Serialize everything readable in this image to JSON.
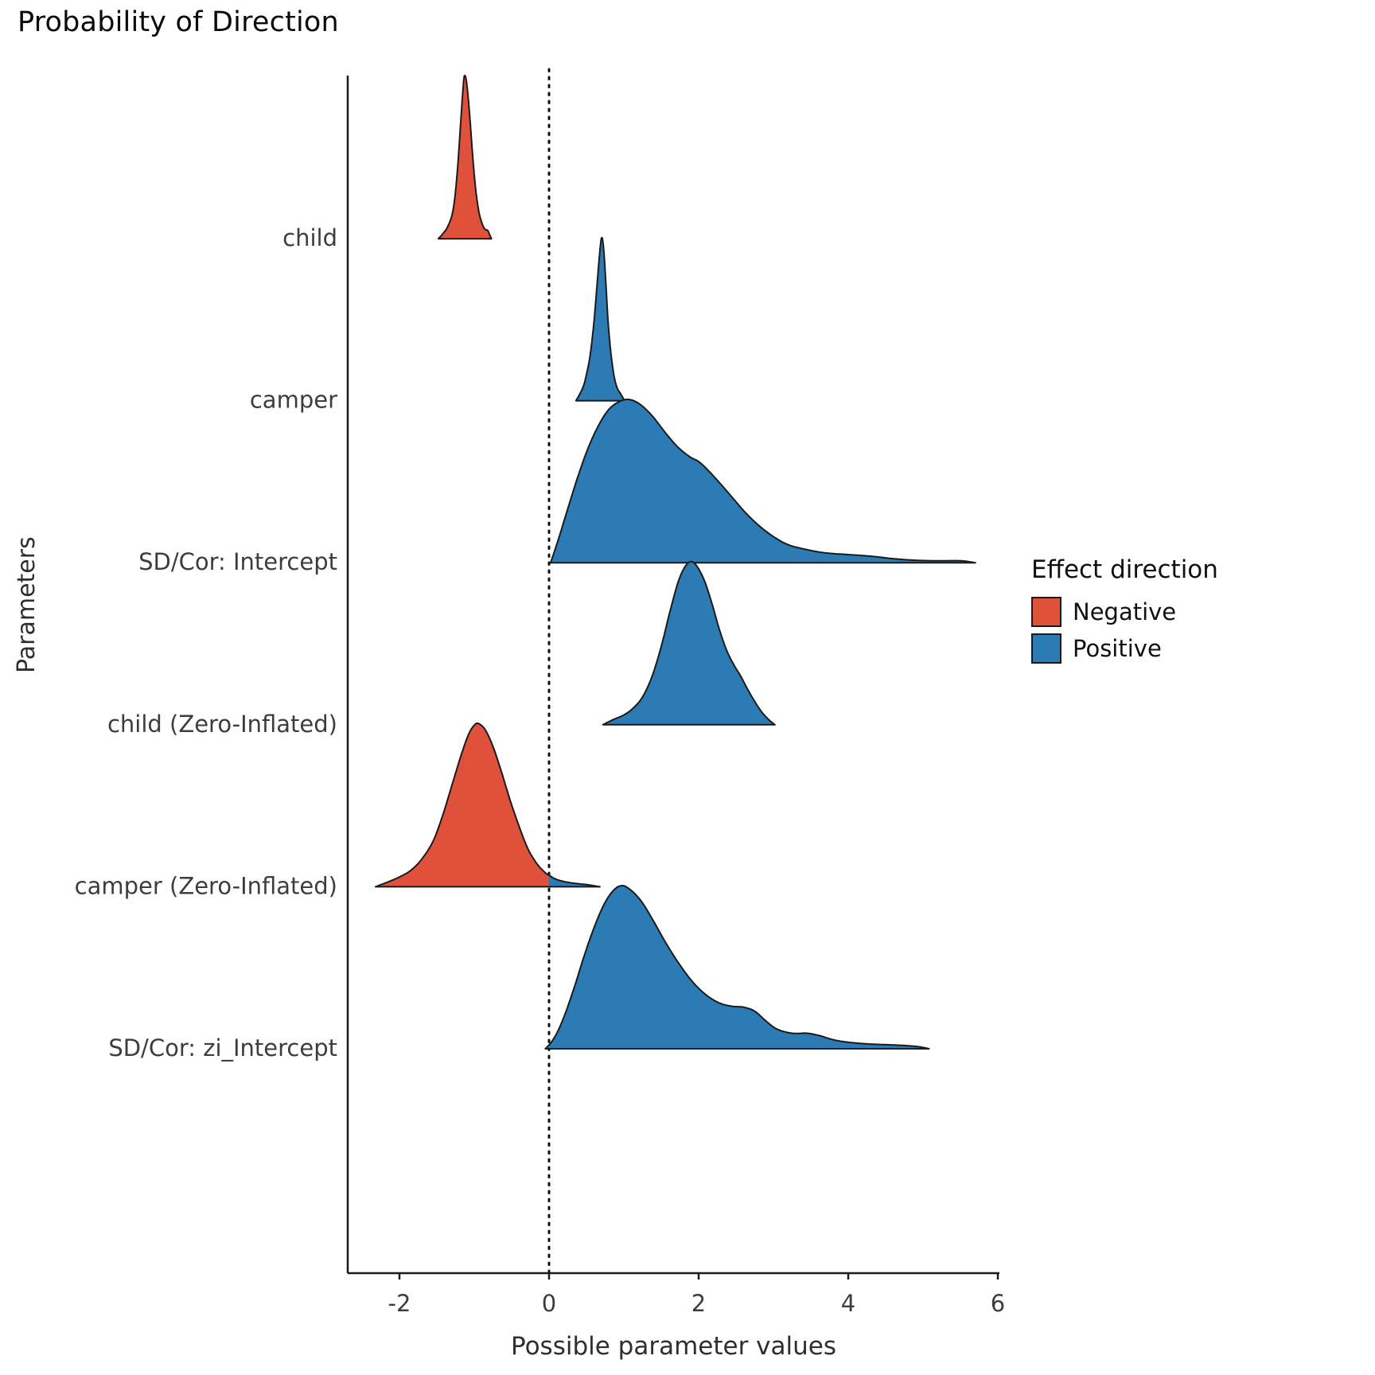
{
  "title": "Probability of Direction",
  "xlabel": "Possible parameter values",
  "ylabel": "Parameters",
  "legend": {
    "title": "Effect direction",
    "entries": [
      {
        "label": "Negative",
        "color": "#E0513C"
      },
      {
        "label": "Positive",
        "color": "#2C7BB5"
      }
    ]
  },
  "colors": {
    "negative": "#E0513C",
    "positive": "#2C7BB5",
    "axis": "#1a1a1a",
    "ridge_outline": "#1a1a1a",
    "tick_text": "#3d3d3d",
    "zero_line": "#111111"
  },
  "chart_data": {
    "type": "area",
    "variant": "ridgeline-density",
    "title": "Probability of Direction",
    "xlabel": "Possible parameter values",
    "ylabel": "Parameters",
    "x_ticks": [
      -2,
      0,
      2,
      4,
      6
    ],
    "xlim": [
      -2.7,
      6.0
    ],
    "zero_reference_line": 0,
    "legend_title": "Effect direction",
    "legend_position": "right",
    "grid": false,
    "parameters": [
      {
        "name": "child",
        "direction": "Negative",
        "segments": [
          {
            "direction": "Negative",
            "points": [
              [
                -1.48,
                0.0
              ],
              [
                -1.42,
                0.03
              ],
              [
                -1.36,
                0.07
              ],
              [
                -1.3,
                0.14
              ],
              [
                -1.26,
                0.25
              ],
              [
                -1.22,
                0.45
              ],
              [
                -1.18,
                0.72
              ],
              [
                -1.15,
                0.92
              ],
              [
                -1.13,
                1.0
              ],
              [
                -1.1,
                0.95
              ],
              [
                -1.06,
                0.75
              ],
              [
                -1.02,
                0.5
              ],
              [
                -0.98,
                0.3
              ],
              [
                -0.94,
                0.17
              ],
              [
                -0.9,
                0.1
              ],
              [
                -0.86,
                0.06
              ],
              [
                -0.82,
                0.05
              ],
              [
                -0.79,
                0.02
              ],
              [
                -0.77,
                0.0
              ]
            ]
          }
        ]
      },
      {
        "name": "camper",
        "direction": "Positive",
        "segments": [
          {
            "direction": "Positive",
            "points": [
              [
                0.36,
                0.0
              ],
              [
                0.41,
                0.04
              ],
              [
                0.46,
                0.09
              ],
              [
                0.5,
                0.16
              ],
              [
                0.55,
                0.28
              ],
              [
                0.6,
                0.48
              ],
              [
                0.64,
                0.7
              ],
              [
                0.68,
                0.92
              ],
              [
                0.705,
                1.0
              ],
              [
                0.73,
                0.93
              ],
              [
                0.76,
                0.72
              ],
              [
                0.79,
                0.48
              ],
              [
                0.83,
                0.28
              ],
              [
                0.87,
                0.15
              ],
              [
                0.91,
                0.08
              ],
              [
                0.96,
                0.04
              ],
              [
                1.01,
                0.0
              ]
            ]
          }
        ]
      },
      {
        "name": "SD/Cor:  Intercept",
        "direction": "Positive",
        "segments": [
          {
            "direction": "Positive",
            "points": [
              [
                0.02,
                0.0
              ],
              [
                0.08,
                0.08
              ],
              [
                0.15,
                0.18
              ],
              [
                0.25,
                0.33
              ],
              [
                0.38,
                0.52
              ],
              [
                0.52,
                0.7
              ],
              [
                0.66,
                0.84
              ],
              [
                0.8,
                0.94
              ],
              [
                0.95,
                0.99
              ],
              [
                1.08,
                1.0
              ],
              [
                1.22,
                0.97
              ],
              [
                1.38,
                0.9
              ],
              [
                1.55,
                0.8
              ],
              [
                1.72,
                0.71
              ],
              [
                1.88,
                0.65
              ],
              [
                2.0,
                0.62
              ],
              [
                2.12,
                0.57
              ],
              [
                2.28,
                0.49
              ],
              [
                2.45,
                0.4
              ],
              [
                2.62,
                0.31
              ],
              [
                2.8,
                0.23
              ],
              [
                3.0,
                0.16
              ],
              [
                3.2,
                0.11
              ],
              [
                3.45,
                0.08
              ],
              [
                3.7,
                0.06
              ],
              [
                4.0,
                0.05
              ],
              [
                4.3,
                0.04
              ],
              [
                4.6,
                0.025
              ],
              [
                4.9,
                0.015
              ],
              [
                5.2,
                0.012
              ],
              [
                5.5,
                0.012
              ],
              [
                5.7,
                0.0
              ]
            ]
          }
        ]
      },
      {
        "name": "child (Zero-Inflated)",
        "direction": "Positive",
        "segments": [
          {
            "direction": "Positive",
            "points": [
              [
                0.72,
                0.0
              ],
              [
                0.85,
                0.03
              ],
              [
                1.0,
                0.06
              ],
              [
                1.12,
                0.1
              ],
              [
                1.25,
                0.17
              ],
              [
                1.38,
                0.3
              ],
              [
                1.5,
                0.48
              ],
              [
                1.62,
                0.7
              ],
              [
                1.73,
                0.88
              ],
              [
                1.82,
                0.97
              ],
              [
                1.9,
                1.0
              ],
              [
                1.98,
                0.97
              ],
              [
                2.08,
                0.88
              ],
              [
                2.18,
                0.74
              ],
              [
                2.28,
                0.58
              ],
              [
                2.38,
                0.45
              ],
              [
                2.48,
                0.36
              ],
              [
                2.56,
                0.3
              ],
              [
                2.64,
                0.23
              ],
              [
                2.74,
                0.15
              ],
              [
                2.84,
                0.08
              ],
              [
                2.94,
                0.03
              ],
              [
                3.02,
                0.0
              ]
            ]
          }
        ]
      },
      {
        "name": "camper (Zero-Inflated)",
        "direction": "Negative",
        "segments": [
          {
            "direction": "Negative",
            "points": [
              [
                -2.32,
                0.0
              ],
              [
                -2.15,
                0.03
              ],
              [
                -2.0,
                0.06
              ],
              [
                -1.85,
                0.1
              ],
              [
                -1.7,
                0.17
              ],
              [
                -1.55,
                0.28
              ],
              [
                -1.42,
                0.44
              ],
              [
                -1.3,
                0.62
              ],
              [
                -1.18,
                0.8
              ],
              [
                -1.08,
                0.93
              ],
              [
                -1.0,
                0.99
              ],
              [
                -0.94,
                1.0
              ],
              [
                -0.85,
                0.96
              ],
              [
                -0.75,
                0.86
              ],
              [
                -0.64,
                0.71
              ],
              [
                -0.52,
                0.53
              ],
              [
                -0.4,
                0.37
              ],
              [
                -0.28,
                0.23
              ],
              [
                -0.16,
                0.14
              ],
              [
                -0.06,
                0.09
              ],
              [
                0.0,
                0.07
              ]
            ]
          },
          {
            "direction": "Positive",
            "points": [
              [
                0.0,
                0.07
              ],
              [
                0.1,
                0.045
              ],
              [
                0.22,
                0.03
              ],
              [
                0.36,
                0.02
              ],
              [
                0.52,
                0.012
              ],
              [
                0.68,
                0.0
              ]
            ]
          }
        ]
      },
      {
        "name": "SD/Cor:  zi_Intercept",
        "direction": "Positive",
        "segments": [
          {
            "direction": "Positive",
            "points": [
              [
                -0.05,
                0.0
              ],
              [
                0.03,
                0.04
              ],
              [
                0.12,
                0.11
              ],
              [
                0.22,
                0.22
              ],
              [
                0.34,
                0.38
              ],
              [
                0.47,
                0.57
              ],
              [
                0.6,
                0.74
              ],
              [
                0.73,
                0.88
              ],
              [
                0.86,
                0.97
              ],
              [
                0.98,
                1.0
              ],
              [
                1.1,
                0.97
              ],
              [
                1.24,
                0.9
              ],
              [
                1.4,
                0.78
              ],
              [
                1.56,
                0.65
              ],
              [
                1.74,
                0.52
              ],
              [
                1.92,
                0.41
              ],
              [
                2.1,
                0.33
              ],
              [
                2.28,
                0.28
              ],
              [
                2.45,
                0.26
              ],
              [
                2.6,
                0.255
              ],
              [
                2.75,
                0.23
              ],
              [
                2.9,
                0.17
              ],
              [
                3.05,
                0.12
              ],
              [
                3.25,
                0.095
              ],
              [
                3.45,
                0.095
              ],
              [
                3.62,
                0.08
              ],
              [
                3.8,
                0.055
              ],
              [
                4.0,
                0.04
              ],
              [
                4.25,
                0.03
              ],
              [
                4.5,
                0.025
              ],
              [
                4.75,
                0.02
              ],
              [
                4.95,
                0.012
              ],
              [
                5.08,
                0.0
              ]
            ]
          }
        ]
      }
    ]
  }
}
